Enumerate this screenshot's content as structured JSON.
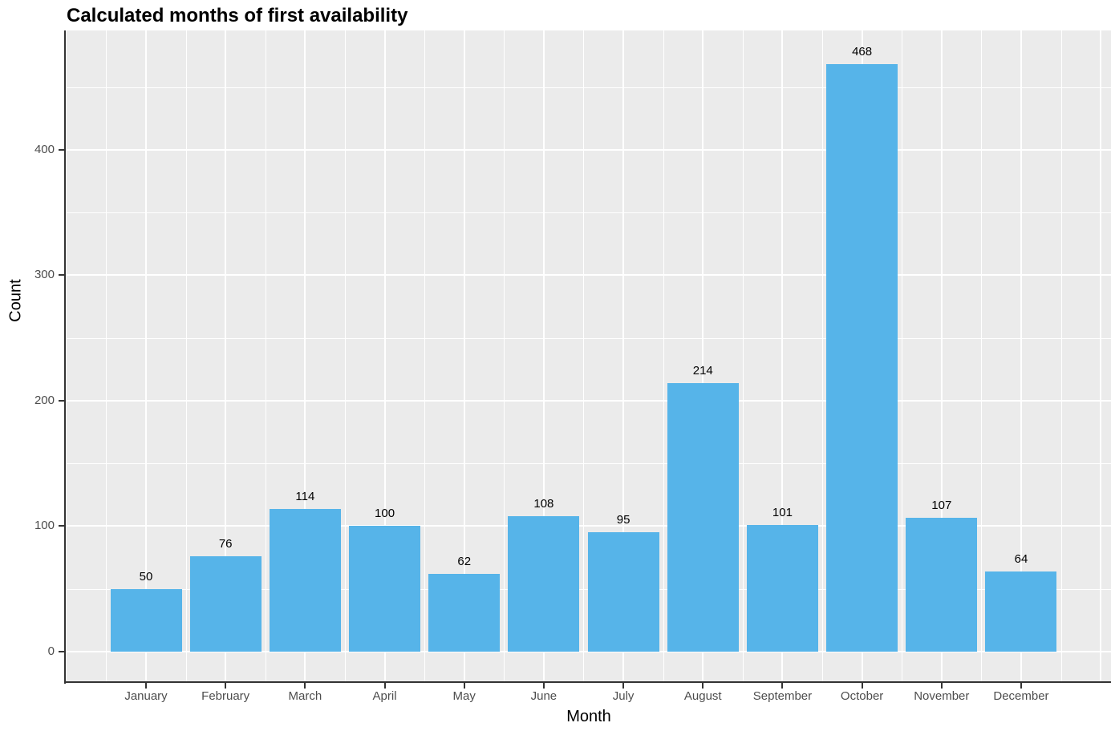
{
  "chart_data": {
    "type": "bar",
    "title": "Calculated months of first availability",
    "xlabel": "Month",
    "ylabel": "Count",
    "categories": [
      "January",
      "February",
      "March",
      "April",
      "May",
      "June",
      "July",
      "August",
      "September",
      "October",
      "November",
      "December"
    ],
    "values": [
      50,
      76,
      114,
      100,
      62,
      108,
      95,
      214,
      101,
      468,
      107,
      64
    ],
    "bar_value_labels": [
      "50",
      "76",
      "114",
      "100",
      "62",
      "108",
      "95",
      "214",
      "101",
      "468",
      "107",
      "64"
    ],
    "yticks": [
      0,
      100,
      200,
      300,
      400
    ],
    "yticks_minor": [
      50,
      150,
      250,
      350,
      450
    ],
    "ylim": [
      -24,
      495
    ],
    "grid": "major+minor, white on gray panel",
    "legend": "none",
    "colors": {
      "bar": "#56B4E9",
      "panel_bg": "#EBEBEB",
      "grid": "#FFFFFF",
      "axis_line": "#333333",
      "tick": "#333333",
      "tick_label": "#4D4D4D",
      "text": "#000000"
    }
  }
}
